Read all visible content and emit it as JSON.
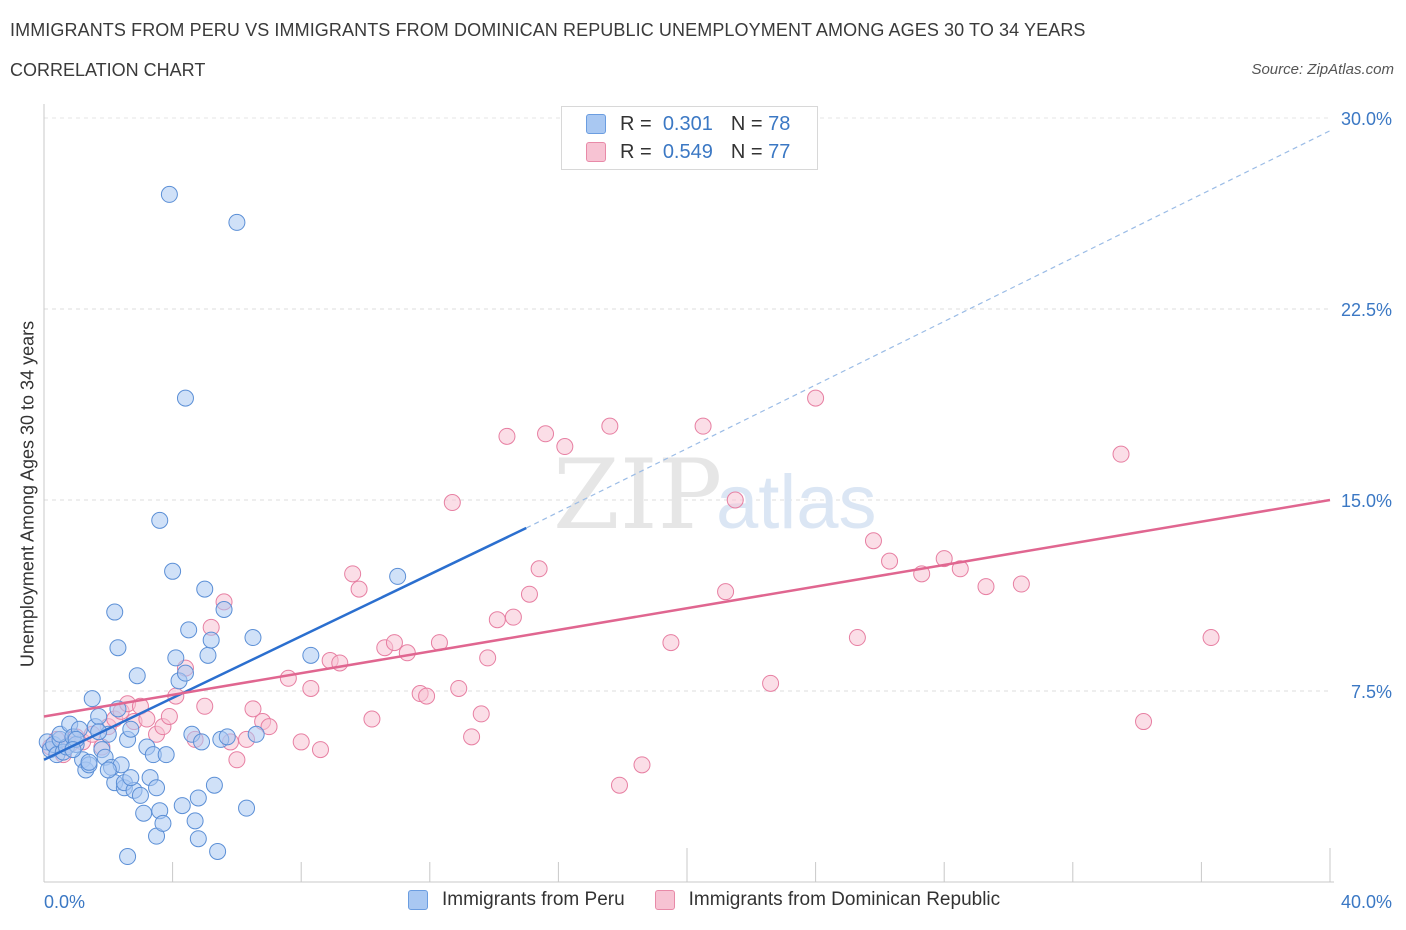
{
  "header": {
    "title": "IMMIGRANTS FROM PERU VS IMMIGRANTS FROM DOMINICAN REPUBLIC UNEMPLOYMENT AMONG AGES 30 TO 34 YEARS",
    "subtitle": "CORRELATION CHART",
    "source": "Source: ZipAtlas.com"
  },
  "watermark": {
    "zip": "ZIP",
    "atlas": "atlas"
  },
  "legend": {
    "r_label": "R =",
    "n_label": "N =",
    "rows": [
      {
        "r": "0.301",
        "n": "78",
        "color": "#a9c8f2",
        "border": "#6b9de0"
      },
      {
        "r": "0.549",
        "n": "77",
        "color": "#f7c3d3",
        "border": "#e88aa8"
      }
    ]
  },
  "colors": {
    "peru_fill": "#a9c8f2",
    "peru_stroke": "#5b8fd6",
    "peru_line": "#2b6fcf",
    "dr_fill": "#f7c3d3",
    "dr_stroke": "#e77fa2",
    "dr_line": "#e06690",
    "axis_label": "#3b78c4"
  },
  "chart_data": {
    "type": "scatter",
    "xlabel": "",
    "ylabel": "Unemployment Among Ages 30 to 34 years",
    "xlim": [
      0,
      40
    ],
    "ylim": [
      0,
      30
    ],
    "x_tick_labels": [
      "0.0%",
      "40.0%"
    ],
    "y_tick_labels": [
      "7.5%",
      "15.0%",
      "22.5%",
      "30.0%"
    ],
    "y_ticks": [
      7.5,
      15.0,
      22.5,
      30.0
    ],
    "grid": true,
    "series": [
      {
        "name": "Immigrants from Peru",
        "trend": {
          "x0": 0,
          "y0": 4.8,
          "x1": 15.0,
          "y1": 13.9,
          "dash_to_x": 40,
          "dash_to_y": 29.5
        },
        "points": [
          [
            0.1,
            5.5
          ],
          [
            0.2,
            5.2
          ],
          [
            0.3,
            5.4
          ],
          [
            0.4,
            5.0
          ],
          [
            0.5,
            5.6
          ],
          [
            0.6,
            5.1
          ],
          [
            0.7,
            5.3
          ],
          [
            0.5,
            5.8
          ],
          [
            0.8,
            6.2
          ],
          [
            0.9,
            5.7
          ],
          [
            1.0,
            5.4
          ],
          [
            1.1,
            6.0
          ],
          [
            1.2,
            4.8
          ],
          [
            1.3,
            4.4
          ],
          [
            1.4,
            4.6
          ],
          [
            1.5,
            7.2
          ],
          [
            1.6,
            6.1
          ],
          [
            1.7,
            6.5
          ],
          [
            1.8,
            5.2
          ],
          [
            1.9,
            4.9
          ],
          [
            2.0,
            5.8
          ],
          [
            2.1,
            4.5
          ],
          [
            2.2,
            3.9
          ],
          [
            2.3,
            6.8
          ],
          [
            2.4,
            4.6
          ],
          [
            2.5,
            3.7
          ],
          [
            2.2,
            10.6
          ],
          [
            2.3,
            9.2
          ],
          [
            2.5,
            3.9
          ],
          [
            2.6,
            5.6
          ],
          [
            2.7,
            6.0
          ],
          [
            2.8,
            3.6
          ],
          [
            2.6,
            1.0
          ],
          [
            2.9,
            8.1
          ],
          [
            3.0,
            3.4
          ],
          [
            3.1,
            2.7
          ],
          [
            3.2,
            5.3
          ],
          [
            3.3,
            4.1
          ],
          [
            3.4,
            5.0
          ],
          [
            3.5,
            1.8
          ],
          [
            3.6,
            2.8
          ],
          [
            3.7,
            2.3
          ],
          [
            3.8,
            5.0
          ],
          [
            3.9,
            27.0
          ],
          [
            4.0,
            12.2
          ],
          [
            4.1,
            8.8
          ],
          [
            4.2,
            7.9
          ],
          [
            4.3,
            3.0
          ],
          [
            4.4,
            8.2
          ],
          [
            4.5,
            9.9
          ],
          [
            4.6,
            5.8
          ],
          [
            4.7,
            2.4
          ],
          [
            4.8,
            1.7
          ],
          [
            4.9,
            5.5
          ],
          [
            5.0,
            11.5
          ],
          [
            5.1,
            8.9
          ],
          [
            5.2,
            9.5
          ],
          [
            5.3,
            3.8
          ],
          [
            5.4,
            1.2
          ],
          [
            5.5,
            5.6
          ],
          [
            5.6,
            10.7
          ],
          [
            5.7,
            5.7
          ],
          [
            6.0,
            25.9
          ],
          [
            6.3,
            2.9
          ],
          [
            6.5,
            9.6
          ],
          [
            6.6,
            5.8
          ],
          [
            8.3,
            8.9
          ],
          [
            11.0,
            12.0
          ],
          [
            3.5,
            3.7
          ],
          [
            3.6,
            14.2
          ],
          [
            4.4,
            19.0
          ],
          [
            1.7,
            5.9
          ],
          [
            1.0,
            5.6
          ],
          [
            2.0,
            4.4
          ],
          [
            0.9,
            5.2
          ],
          [
            1.4,
            4.7
          ],
          [
            2.7,
            4.1
          ],
          [
            4.8,
            3.3
          ]
        ]
      },
      {
        "name": "Immigrants from Dominican Republic",
        "trend": {
          "x0": 0,
          "y0": 6.5,
          "x1": 40,
          "y1": 15.0
        },
        "points": [
          [
            0.2,
            5.3
          ],
          [
            0.4,
            5.6
          ],
          [
            0.6,
            5.0
          ],
          [
            0.8,
            5.4
          ],
          [
            1.0,
            5.7
          ],
          [
            1.2,
            5.5
          ],
          [
            1.5,
            5.8
          ],
          [
            1.8,
            5.3
          ],
          [
            2.0,
            6.1
          ],
          [
            2.2,
            6.4
          ],
          [
            2.4,
            6.7
          ],
          [
            2.6,
            7.0
          ],
          [
            2.8,
            6.3
          ],
          [
            3.0,
            6.9
          ],
          [
            3.2,
            6.4
          ],
          [
            3.5,
            5.8
          ],
          [
            3.7,
            6.1
          ],
          [
            3.9,
            6.5
          ],
          [
            4.1,
            7.3
          ],
          [
            4.4,
            8.4
          ],
          [
            4.7,
            5.6
          ],
          [
            5.0,
            6.9
          ],
          [
            5.2,
            10.0
          ],
          [
            5.6,
            11.0
          ],
          [
            5.8,
            5.5
          ],
          [
            6.0,
            4.8
          ],
          [
            6.3,
            5.6
          ],
          [
            6.5,
            6.8
          ],
          [
            6.8,
            6.3
          ],
          [
            7.0,
            6.1
          ],
          [
            7.6,
            8.0
          ],
          [
            8.0,
            5.5
          ],
          [
            8.3,
            7.6
          ],
          [
            8.6,
            5.2
          ],
          [
            8.9,
            8.7
          ],
          [
            9.2,
            8.6
          ],
          [
            9.6,
            12.1
          ],
          [
            9.8,
            11.5
          ],
          [
            10.2,
            6.4
          ],
          [
            10.6,
            9.2
          ],
          [
            10.9,
            9.4
          ],
          [
            11.3,
            9.0
          ],
          [
            11.7,
            7.4
          ],
          [
            11.9,
            7.3
          ],
          [
            12.3,
            9.4
          ],
          [
            12.7,
            14.9
          ],
          [
            12.9,
            7.6
          ],
          [
            13.3,
            5.7
          ],
          [
            13.6,
            6.6
          ],
          [
            13.8,
            8.8
          ],
          [
            14.1,
            10.3
          ],
          [
            14.4,
            17.5
          ],
          [
            14.6,
            10.4
          ],
          [
            15.1,
            11.3
          ],
          [
            15.4,
            12.3
          ],
          [
            15.6,
            17.6
          ],
          [
            16.2,
            17.1
          ],
          [
            17.6,
            17.9
          ],
          [
            17.9,
            3.8
          ],
          [
            18.6,
            4.6
          ],
          [
            19.5,
            9.4
          ],
          [
            20.5,
            17.9
          ],
          [
            21.2,
            11.4
          ],
          [
            21.5,
            15.0
          ],
          [
            22.6,
            7.8
          ],
          [
            24.0,
            19.0
          ],
          [
            25.3,
            9.6
          ],
          [
            25.8,
            13.4
          ],
          [
            26.3,
            12.6
          ],
          [
            27.3,
            12.1
          ],
          [
            28.0,
            12.7
          ],
          [
            28.5,
            12.3
          ],
          [
            29.3,
            11.6
          ],
          [
            30.4,
            11.7
          ],
          [
            33.5,
            16.8
          ],
          [
            34.2,
            6.3
          ],
          [
            36.3,
            9.6
          ]
        ]
      }
    ]
  },
  "bottom_legend": [
    {
      "label": "Immigrants from Peru"
    },
    {
      "label": "Immigrants from Dominican Republic"
    }
  ]
}
